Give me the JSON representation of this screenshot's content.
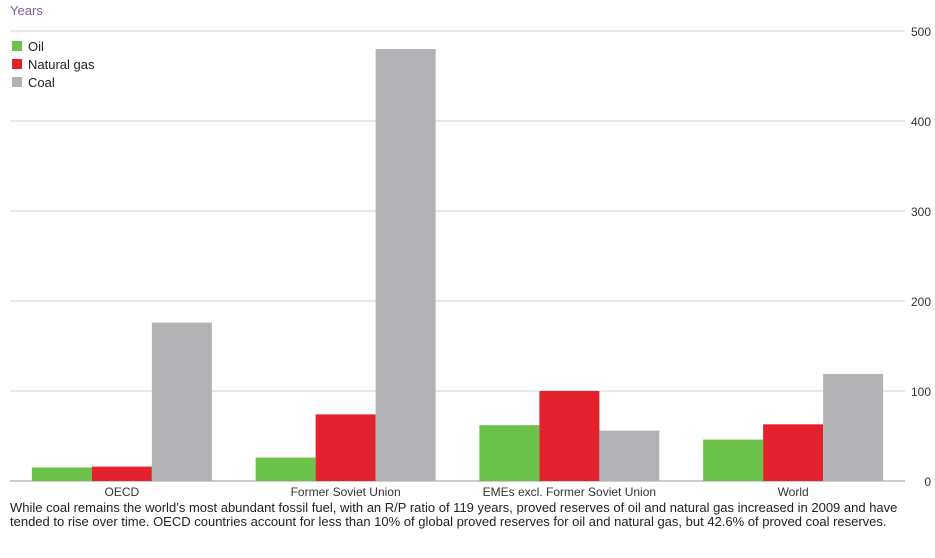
{
  "chart_data": {
    "type": "bar",
    "ylabel": "Years",
    "categories": [
      "OECD",
      "Former Soviet Union",
      "EMEs excl. Former Soviet Union",
      "World"
    ],
    "series": [
      {
        "name": "Oil",
        "color": "#6cc24a",
        "values": [
          15,
          26,
          62,
          46
        ]
      },
      {
        "name": "Natural gas",
        "color": "#e4222d",
        "values": [
          16,
          74,
          100,
          63
        ]
      },
      {
        "name": "Coal",
        "color": "#b2b2b5",
        "values": [
          176,
          480,
          56,
          119
        ]
      }
    ],
    "ylim": [
      0,
      500
    ],
    "yticks": [
      0,
      100,
      200,
      300,
      400,
      500
    ],
    "grid": true,
    "legend_position": "top-left",
    "axis_color": "#7f5aa2"
  },
  "caption": "While coal remains the world’s most abundant fossil fuel, with an R/P ratio of 119 years, proved reserves of oil and natural gas increased in 2009 and have tended to rise over time. OECD countries account for less than 10% of global proved reserves for oil and natural gas, but 42.6% of proved coal reserves."
}
